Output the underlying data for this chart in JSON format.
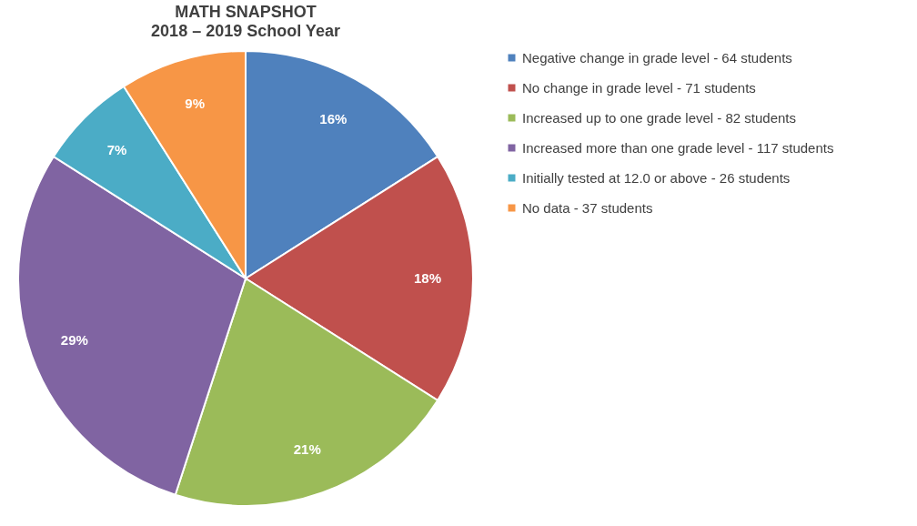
{
  "chart_data": {
    "type": "pie",
    "title": "MATH SNAPSHOT",
    "subtitle": "2018 – 2019 School Year",
    "categories": [
      "Negative change in grade level - 64 students",
      "No change in grade level - 71 students",
      "Increased up to one grade level - 82 students",
      "Increased more than one grade level - 117 students",
      "Initially tested at 12.0 or above - 26 students",
      "No data - 37 students"
    ],
    "values": [
      16,
      18,
      21,
      29,
      7,
      9
    ],
    "value_labels": [
      "16%",
      "18%",
      "21%",
      "29%",
      "7%",
      "9%"
    ],
    "colors": [
      "#4f81bd",
      "#c0504d",
      "#9bbb59",
      "#8064a2",
      "#4bacc6",
      "#f79646"
    ],
    "legend": "right"
  }
}
